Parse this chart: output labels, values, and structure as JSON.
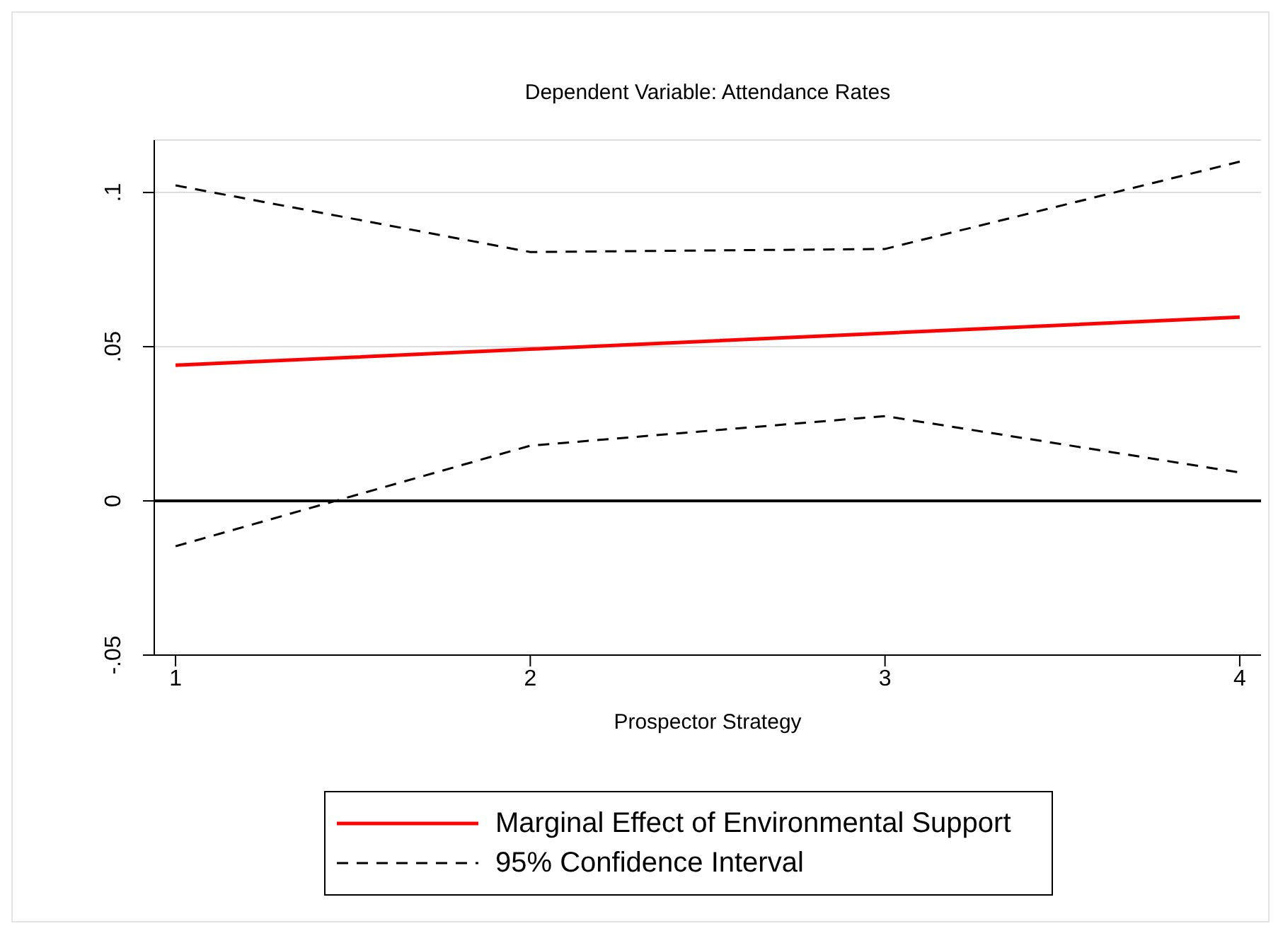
{
  "chart_data": {
    "type": "line",
    "title": "Dependent Variable: Attendance Rates",
    "xlabel": "Prospector Strategy",
    "x": [
      1,
      2,
      3,
      4
    ],
    "series": [
      {
        "name": "Marginal Effect of Environmental Support",
        "color": "#ff0000",
        "line_style": "solid",
        "values": [
          0.044,
          0.0492,
          0.0544,
          0.0596
        ]
      },
      {
        "name": "95% Confidence Interval",
        "color": "#000000",
        "line_style": "dashed",
        "values": [
          0.1023,
          0.0807,
          0.0817,
          0.11
        ]
      },
      {
        "color": "#000000",
        "line_style": "dashed",
        "values": [
          -0.0147,
          0.0179,
          0.0275,
          0.0092
        ]
      }
    ],
    "xlim": [
      0.94,
      4.06
    ],
    "xticks": [
      1,
      2,
      3,
      4
    ],
    "ylim": [
      -0.05,
      0.117
    ],
    "yticks": [
      {
        "value": -0.05,
        "label": "-.05"
      },
      0,
      {
        "value": 0.05,
        "label": ".05"
      },
      {
        "value": 0.1,
        "label": ".1"
      }
    ],
    "ref_lines": [
      {
        "axis": "y",
        "value": 0,
        "color": "#000000"
      }
    ],
    "grid": "y",
    "legend": "bottom",
    "marker": "none"
  }
}
